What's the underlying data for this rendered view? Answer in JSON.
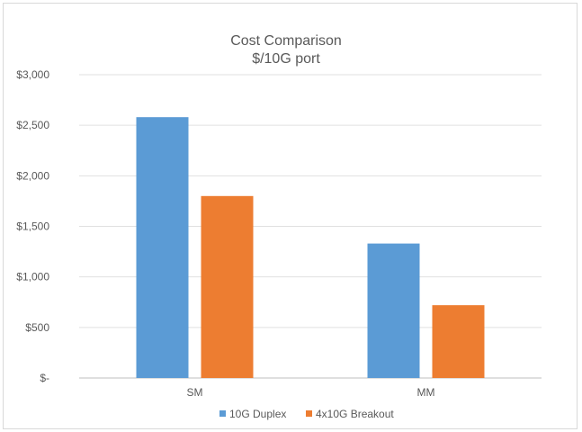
{
  "chart_data": {
    "type": "bar",
    "title": "Cost Comparison",
    "subtitle": "$/10G port",
    "categories": [
      "SM",
      "MM"
    ],
    "series": [
      {
        "name": "10G Duplex",
        "color": "#5b9bd5",
        "values": [
          2580,
          1330
        ]
      },
      {
        "name": "4x10G Breakout",
        "color": "#ed7d31",
        "values": [
          1800,
          720
        ]
      }
    ],
    "ylim": [
      0,
      3000
    ],
    "yticks": [
      0,
      500,
      1000,
      1500,
      2000,
      2500,
      3000
    ],
    "ytick_labels": [
      "$-",
      "$500",
      "$1,000",
      "$1,500",
      "$2,000",
      "$2,500",
      "$3,000"
    ],
    "grid": true,
    "legend_position": "bottom",
    "gridline_color": "#e0e0e0",
    "axis_color": "#bfbfbf"
  }
}
